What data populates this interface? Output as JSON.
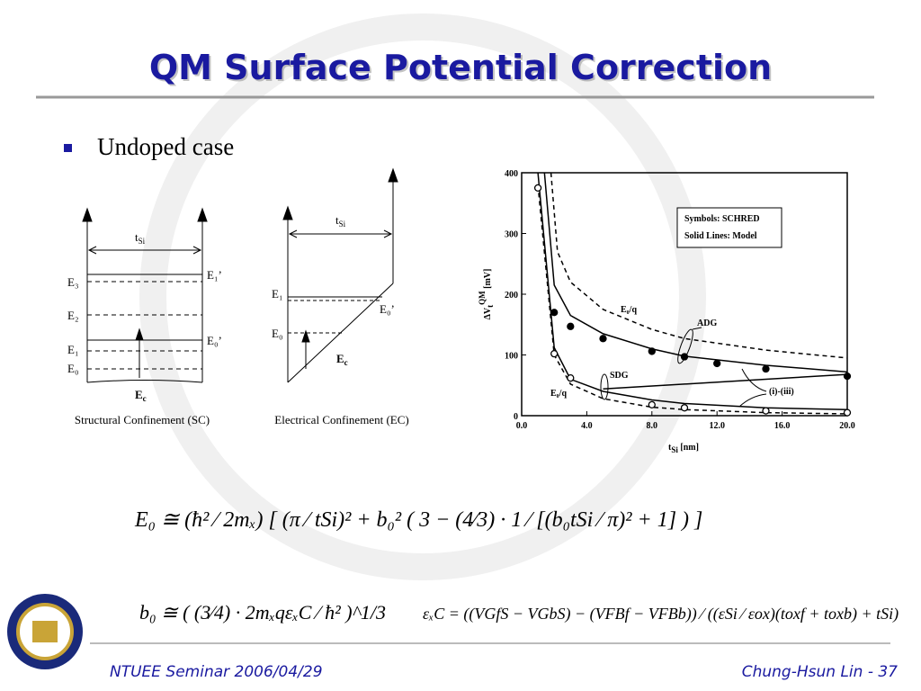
{
  "title": "QM Surface Potential Correction",
  "bullet": "Undoped case",
  "diagram_sc": {
    "t": "t",
    "si": "Si",
    "e3": "E₃",
    "e2": "E₂",
    "e1": "E₁",
    "e0": "E₀",
    "e1p": "E₁’",
    "e0p": "E₀’",
    "ec": "E",
    "ec_sub": "c",
    "caption": "Structural Confinement (SC)"
  },
  "diagram_ec": {
    "t": "t",
    "si": "Si",
    "e1": "E₁",
    "e0": "E₀",
    "e0p": "E₀’",
    "ec": "E",
    "ec_sub": "c",
    "caption": "Electrical Confinement (EC)"
  },
  "plot": {
    "legend": [
      "Symbols: SCHRED",
      "Solid Lines: Model"
    ],
    "xlabel": [
      "t",
      "Si",
      " [nm]"
    ],
    "ylabel": [
      "ΔV",
      "t",
      "QM",
      " [mV]"
    ],
    "xlim": [
      0,
      20
    ],
    "ylim": [
      0,
      400
    ],
    "xticks": [
      {
        "value": 0,
        "label": "0.0"
      },
      {
        "value": 4,
        "label": "4.0"
      },
      {
        "value": 8,
        "label": "8.0"
      },
      {
        "value": 12,
        "label": "12.0"
      },
      {
        "value": 16,
        "label": "16.0"
      },
      {
        "value": 20,
        "label": "20.0"
      }
    ],
    "yticks": [
      0,
      100,
      200,
      300,
      400
    ],
    "annotations": {
      "adg": "ADG",
      "sdg": "SDG",
      "e0q_top": "E₀/q",
      "e0q_bottom": "E₀/q",
      "range": "(i)-(iii)"
    },
    "points": [
      {
        "filled": true,
        "x": [
          2,
          3,
          5,
          8,
          10,
          12,
          15,
          20
        ],
        "values": [
          170,
          147,
          127,
          106,
          97,
          86,
          77,
          65
        ]
      },
      {
        "filled": false,
        "x": [
          1,
          2,
          3,
          8,
          10,
          15,
          20
        ],
        "values": [
          375,
          102,
          62,
          18,
          13,
          8,
          5
        ]
      }
    ],
    "lines": [
      {
        "dashed": false,
        "x": [
          1.4,
          2,
          3,
          5,
          8,
          10,
          15,
          20
        ],
        "values": [
          400,
          215,
          165,
          135,
          110,
          98,
          83,
          72
        ]
      },
      {
        "dashed": true,
        "x": [
          1.8,
          2.2,
          3,
          5,
          8,
          10,
          15,
          20
        ],
        "values": [
          400,
          270,
          220,
          175,
          142,
          127,
          108,
          95
        ]
      },
      {
        "dashed": false,
        "x": [
          1,
          2,
          3,
          5,
          8,
          10,
          15,
          20
        ],
        "values": [
          400,
          112,
          60,
          40,
          26,
          20,
          13,
          10
        ]
      },
      {
        "dashed": true,
        "x": [
          1,
          2,
          3,
          5,
          8,
          10,
          15,
          20
        ],
        "values": [
          380,
          100,
          52,
          28,
          14,
          10,
          5,
          3
        ]
      },
      {
        "dashed": false,
        "x": [
          5,
          10,
          15,
          20
        ],
        "values": [
          44,
          52,
          60,
          68
        ]
      }
    ]
  },
  "equations": {
    "e0": "E₀ ≅ (ħ² ⁄ 2mₓ) [ (π ⁄ tSi)² + b₀² ( 3 − (4⁄3) · 1 ⁄ [(b₀tSi ⁄ π)² + 1] ) ]",
    "b0": "b₀ ≅ ( (3⁄4) · 2mₓqεₓC ⁄ ħ² )^1/3",
    "exc": "εₓC = ((VGfS − VGbS) − (VFBf − VFBb)) ⁄ ((εSi ⁄ εox)(toxf + toxb) + tSi)"
  },
  "footer": {
    "left": "NTUEE Seminar 2006/04/29",
    "right": "Chung-Hsun Lin - 37"
  }
}
